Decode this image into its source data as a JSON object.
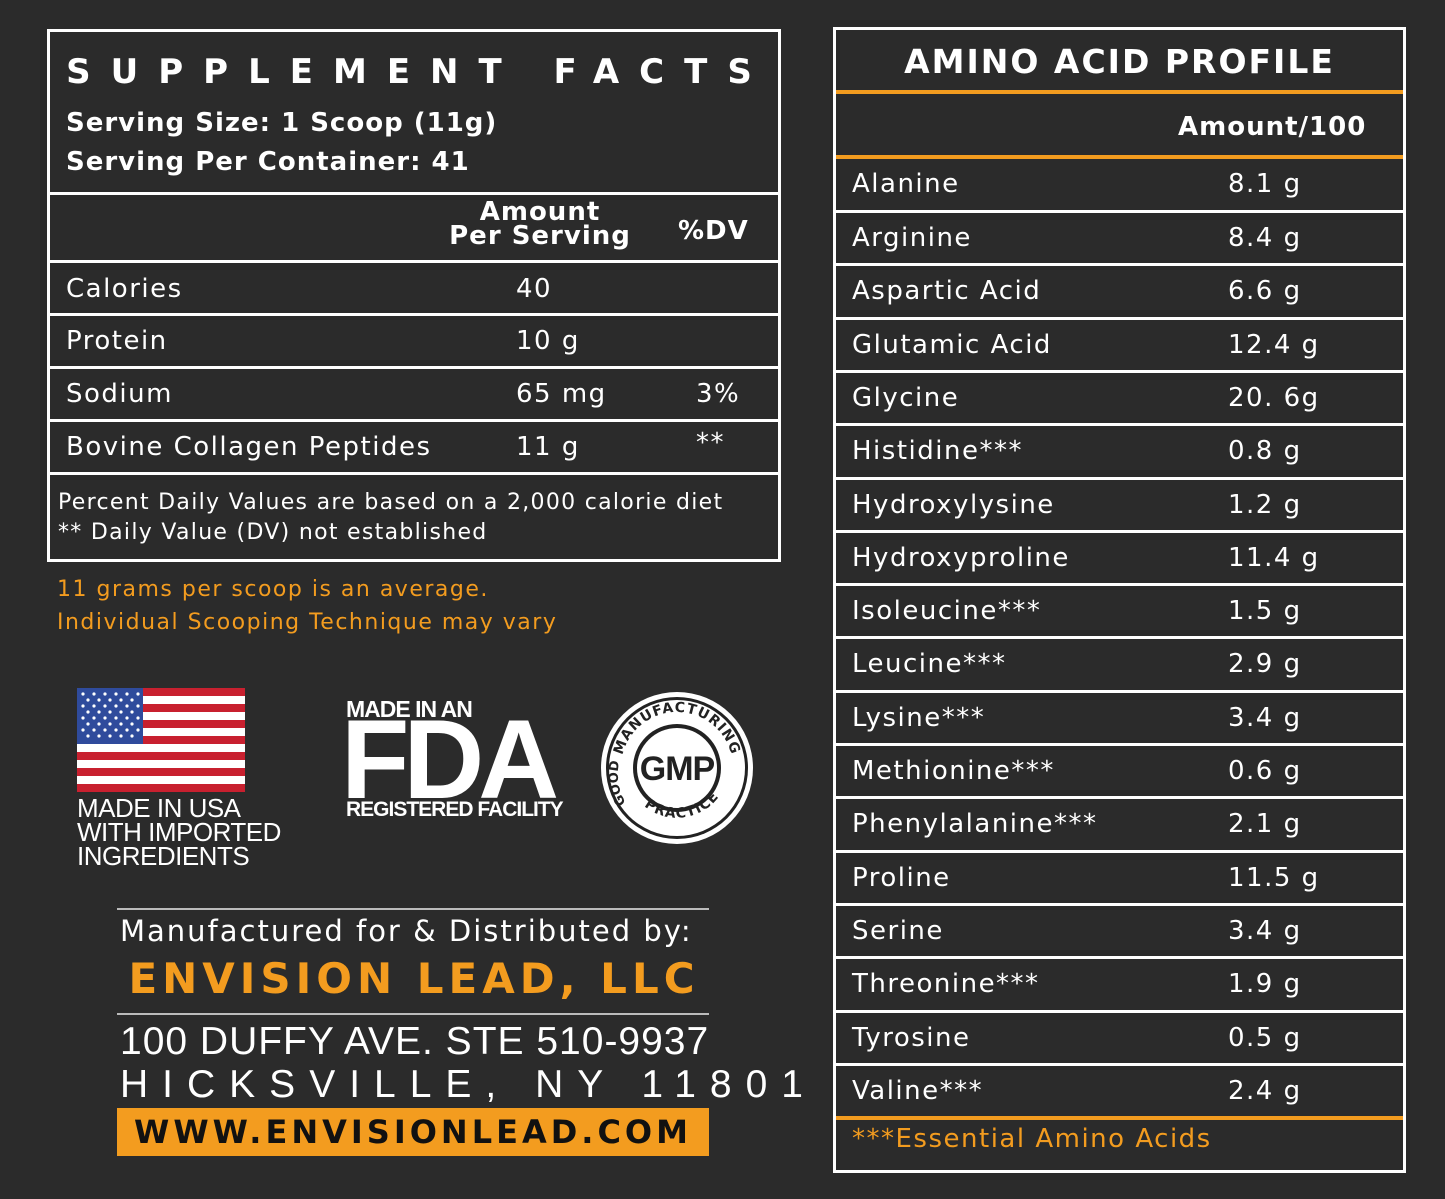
{
  "supplement_facts": {
    "title": "SUPPLEMENT FACTS",
    "serving_size": "Serving Size: 1 Scoop (11g)",
    "servings_per_container": "Serving Per Container: 41",
    "header_amount_line1": "Amount",
    "header_amount_line2": "Per Serving",
    "header_dv": "%DV",
    "rows": [
      {
        "name": "Calories",
        "amount": "40",
        "dv": ""
      },
      {
        "name": "Protein",
        "amount": "10 g",
        "dv": ""
      },
      {
        "name": "Sodium",
        "amount": "65 mg",
        "dv": "3%"
      },
      {
        "name": "Bovine Collagen Peptides",
        "amount": "11 g",
        "dv": "**"
      }
    ],
    "footnote1": "Percent Daily Values are based on a 2,000 calorie diet",
    "footnote2": "** Daily Value (DV) not established"
  },
  "scoop_note": {
    "line1": "11 grams per scoop is an average.",
    "line2": "Individual Scooping Technique may vary"
  },
  "badges": {
    "usa_line1": "MADE IN USA",
    "usa_line2": "WITH IMPORTED",
    "usa_line3": "INGREDIENTS",
    "fda_top": "MADE IN AN",
    "fda_big": "FDA",
    "fda_bottom": "REGISTERED FACILITY",
    "gmp_center": "GMP",
    "gmp_ring_top": "MANUFACTURING",
    "gmp_ring_left": "GOOD",
    "gmp_ring_bottom": "PRACTICE"
  },
  "manufacturer": {
    "label": "Manufactured for & Distributed by:",
    "name": "ENVISION LEAD, LLC",
    "address1": "100 DUFFY AVE. STE 510-9937",
    "address2": "HICKSVILLE, NY 11801",
    "website": "WWW.ENVISIONLEAD.COM"
  },
  "amino_profile": {
    "title": "AMINO ACID PROFILE",
    "amount_header": "Amount/100",
    "rows": [
      {
        "name": "Alanine",
        "value": "8.1 g"
      },
      {
        "name": "Arginine",
        "value": "8.4 g"
      },
      {
        "name": "Aspartic Acid",
        "value": "6.6 g"
      },
      {
        "name": "Glutamic Acid",
        "value": "12.4 g"
      },
      {
        "name": "Glycine",
        "value": "20. 6g"
      },
      {
        "name": "Histidine***",
        "value": "0.8 g"
      },
      {
        "name": "Hydroxylysine",
        "value": "1.2 g"
      },
      {
        "name": "Hydroxyproline",
        "value": "11.4 g"
      },
      {
        "name": "Isoleucine***",
        "value": "1.5 g"
      },
      {
        "name": "Leucine***",
        "value": "2.9 g"
      },
      {
        "name": "Lysine***",
        "value": "3.4 g"
      },
      {
        "name": "Methionine***",
        "value": "0.6 g"
      },
      {
        "name": "Phenylalanine***",
        "value": "2.1 g"
      },
      {
        "name": "Proline",
        "value": "11.5 g"
      },
      {
        "name": "Serine",
        "value": "3.4 g"
      },
      {
        "name": "Threonine***",
        "value": "1.9 g"
      },
      {
        "name": "Tyrosine",
        "value": "0.5 g"
      },
      {
        "name": "Valine***",
        "value": "2.4 g"
      }
    ],
    "footnote": "***Essential Amino Acids"
  },
  "colors": {
    "background": "#2b2b2b",
    "accent": "#f39c1f",
    "text": "#ffffff"
  }
}
